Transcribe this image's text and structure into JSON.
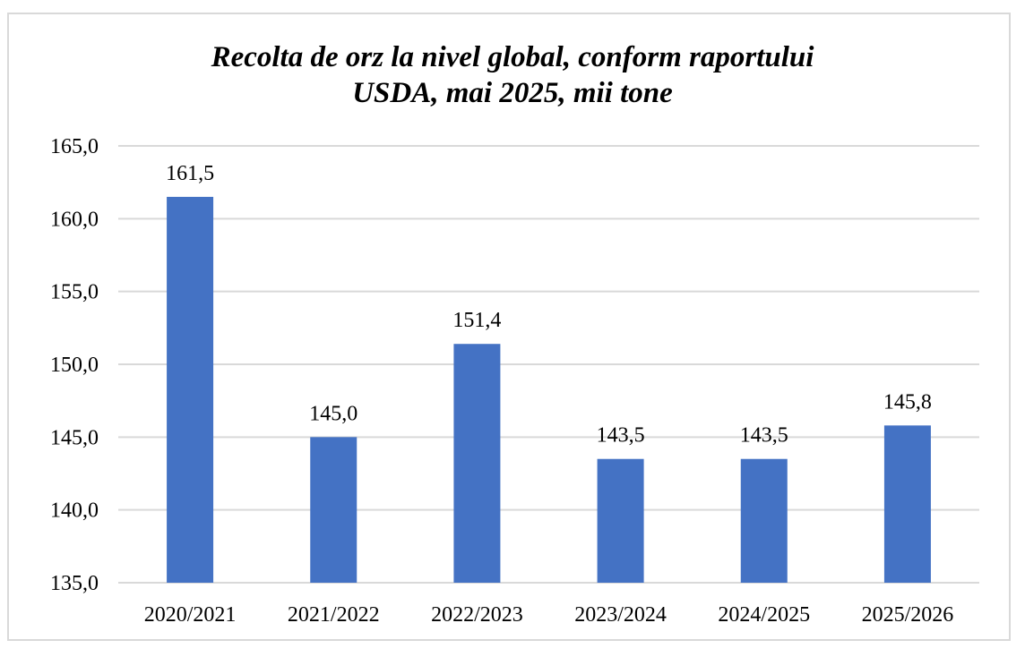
{
  "chart_data": {
    "type": "bar",
    "title_lines": [
      "Recolta de orz la nivel global, conform raportului",
      "USDA, mai 2025, mii tone"
    ],
    "categories": [
      "2020/2021",
      "2021/2022",
      "2022/2023",
      "2023/2024",
      "2024/2025",
      "2025/2026"
    ],
    "values": [
      161.5,
      145.0,
      151.4,
      143.5,
      143.5,
      145.8
    ],
    "value_labels": [
      "161,5",
      "145,0",
      "151,4",
      "143,5",
      "143,5",
      "145,8"
    ],
    "y_ticks": [
      135,
      140,
      145,
      150,
      155,
      160,
      165
    ],
    "y_tick_labels": [
      "135,0",
      "140,0",
      "145,0",
      "150,0",
      "155,0",
      "160,0",
      "165,0"
    ],
    "ylim": [
      135,
      165
    ],
    "bar_color": "#4472C4",
    "grid_color": "#d9d9d9",
    "grid": true,
    "legend": "none"
  }
}
